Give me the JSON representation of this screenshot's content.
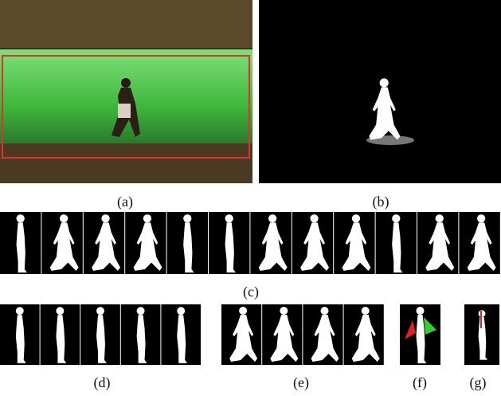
{
  "captions": [
    "(a)",
    "(b)",
    "(c)",
    "(d)",
    "(e)",
    "(f)",
    "(g)"
  ]
}
